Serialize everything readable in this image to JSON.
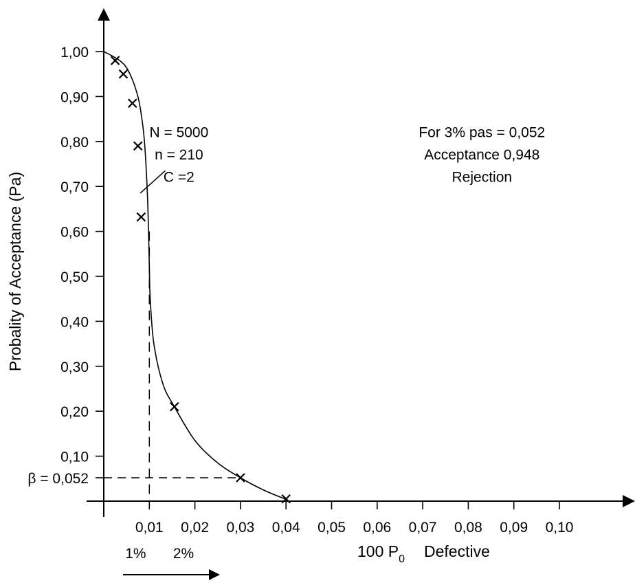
{
  "chart_data": {
    "type": "line",
    "xlabel": "100 P",
    "xlabel_subscript": "0",
    "xlabel_suffix": "Defective",
    "ylabel": "Probality of Acceptance (Pa)",
    "x_ticks": [
      "0,01",
      "0,02",
      "0,03",
      "0,04",
      "0,05",
      "0,06",
      "0,07",
      "0,08",
      "0,09",
      "0,10"
    ],
    "x_tick_values": [
      0.01,
      0.02,
      0.03,
      0.04,
      0.05,
      0.06,
      0.07,
      0.08,
      0.09,
      0.1
    ],
    "y_ticks": [
      "0,10",
      "0,20",
      "0,30",
      "0,40",
      "0,50",
      "0,60",
      "0,70",
      "0,80",
      "0,90",
      "1,00"
    ],
    "y_tick_values": [
      0.1,
      0.2,
      0.3,
      0.4,
      0.5,
      0.6,
      0.7,
      0.8,
      0.9,
      1.0
    ],
    "xlim": [
      0,
      0.115
    ],
    "ylim": [
      0,
      1.08
    ],
    "beta_label": "β = 0,052",
    "beta_value": 0.052,
    "beta_x": 0.03,
    "marker_x_value": 0.01,
    "percent_labels": [
      {
        "text": "1%",
        "x": 0.007
      },
      {
        "text": "2%",
        "x": 0.0175
      }
    ],
    "curve": {
      "x": [
        0,
        0.0035,
        0.0055,
        0.0075,
        0.0085,
        0.009,
        0.0095,
        0.00975,
        0.01,
        0.0102,
        0.011,
        0.013,
        0.0155,
        0.02,
        0.025,
        0.03,
        0.035,
        0.04
      ],
      "y": [
        1.0,
        0.98,
        0.955,
        0.9,
        0.84,
        0.79,
        0.7,
        0.632,
        0.52,
        0.45,
        0.35,
        0.26,
        0.21,
        0.135,
        0.085,
        0.052,
        0.025,
        0.004
      ]
    },
    "markers": {
      "x": [
        0.0025,
        0.0043,
        0.0063,
        0.0075,
        0.0082,
        0.0155,
        0.03,
        0.04
      ],
      "y": [
        0.98,
        0.95,
        0.885,
        0.79,
        0.632,
        0.21,
        0.052,
        0.005
      ]
    },
    "annotations": [
      {
        "text": "N  = 5000",
        "x": 0.0165,
        "y": 0.81
      },
      {
        "text": "n = 210",
        "x": 0.0165,
        "y": 0.76
      },
      {
        "text": "C =2",
        "x": 0.0165,
        "y": 0.71
      }
    ],
    "callout": {
      "from_x": 0.0135,
      "from_y": 0.735,
      "to_x": 0.008,
      "to_y": 0.685
    },
    "notes": [
      {
        "text": "For 3% pas = 0,052",
        "x": 0.083,
        "y": 0.81
      },
      {
        "text": "Acceptance 0,948",
        "x": 0.083,
        "y": 0.76
      },
      {
        "text": "Rejection",
        "x": 0.083,
        "y": 0.71
      }
    ],
    "grid": false
  }
}
